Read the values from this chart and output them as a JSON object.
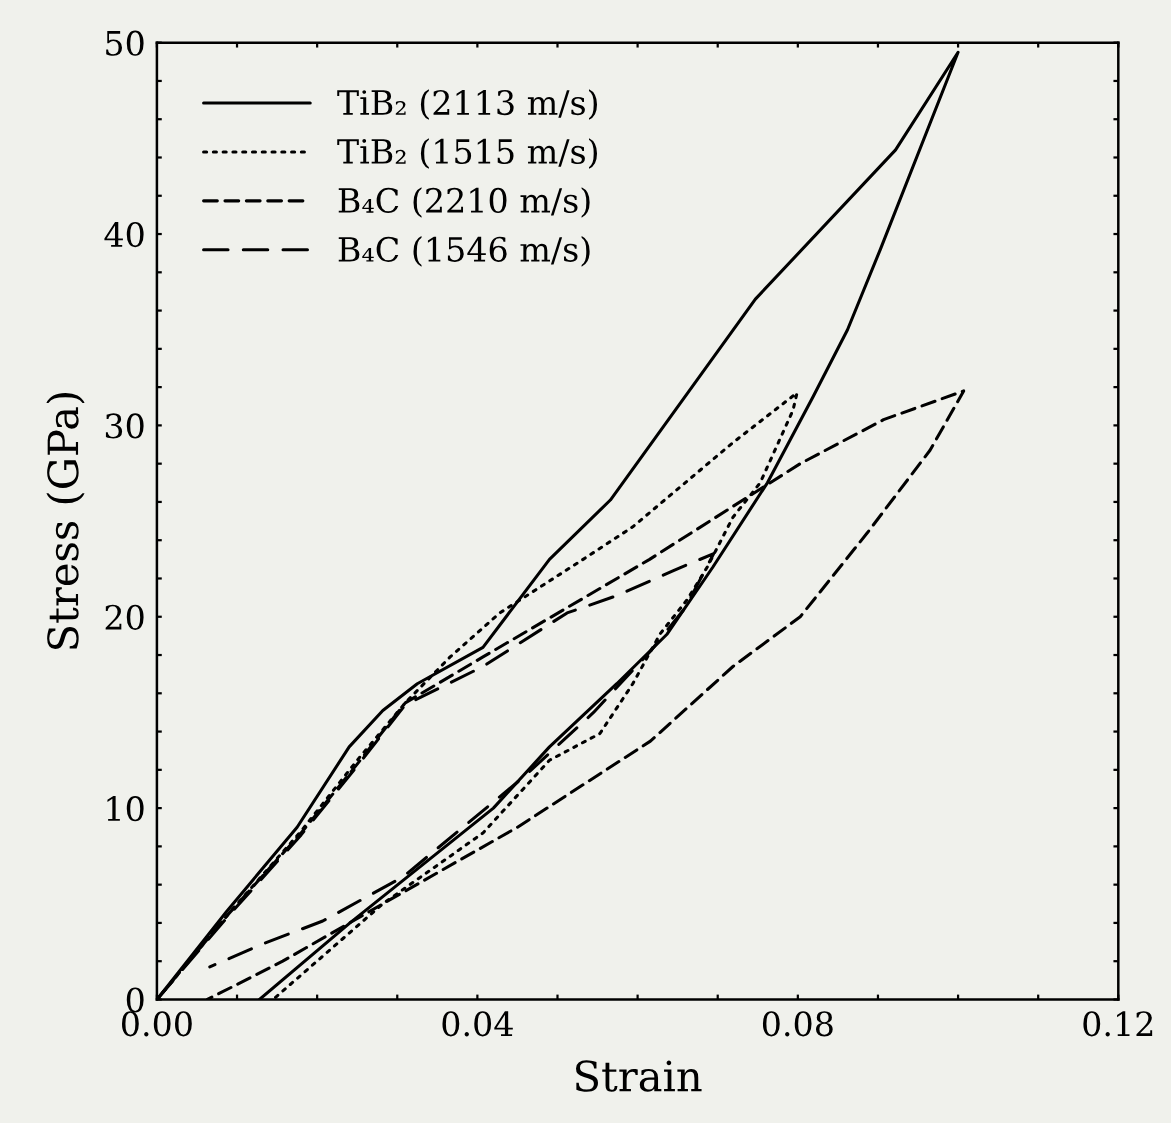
{
  "chart_data": {
    "type": "line",
    "xlabel": "Strain",
    "ylabel": "Stress (GPa)",
    "xlim": [
      0,
      0.12
    ],
    "ylim": [
      0,
      50
    ],
    "xticks": [
      {
        "value": 0,
        "label": "0.00"
      },
      {
        "value": 0.01,
        "label": null
      },
      {
        "value": 0.02,
        "label": null
      },
      {
        "value": 0.03,
        "label": null
      },
      {
        "value": 0.04,
        "label": "0.04"
      },
      {
        "value": 0.05,
        "label": null
      },
      {
        "value": 0.06,
        "label": null
      },
      {
        "value": 0.07,
        "label": null
      },
      {
        "value": 0.08,
        "label": "0.08"
      },
      {
        "value": 0.09,
        "label": null
      },
      {
        "value": 0.1,
        "label": null
      },
      {
        "value": 0.11,
        "label": null
      },
      {
        "value": 0.12,
        "label": "0.12"
      }
    ],
    "yticks": [
      0,
      {
        "value": 2,
        "label": null
      },
      {
        "value": 4,
        "label": null
      },
      {
        "value": 6,
        "label": null
      },
      {
        "value": 8,
        "label": null
      },
      10,
      {
        "value": 12,
        "label": null
      },
      {
        "value": 14,
        "label": null
      },
      {
        "value": 16,
        "label": null
      },
      {
        "value": 18,
        "label": null
      },
      20,
      {
        "value": 22,
        "label": null
      },
      {
        "value": 24,
        "label": null
      },
      {
        "value": 26,
        "label": null
      },
      {
        "value": 28,
        "label": null
      },
      30,
      {
        "value": 32,
        "label": null
      },
      {
        "value": 34,
        "label": null
      },
      {
        "value": 36,
        "label": null
      },
      {
        "value": 38,
        "label": null
      },
      40,
      {
        "value": 42,
        "label": null
      },
      {
        "value": 44,
        "label": null
      },
      {
        "value": 46,
        "label": null
      },
      {
        "value": 48,
        "label": null
      },
      50
    ],
    "grid": false,
    "legend": "top left",
    "marker": "none",
    "series": [
      {
        "name": "TiB₂ (2113 m/s)",
        "color": "#000000",
        "line_style": "solid",
        "x": [
          0,
          0.0087,
          0.0175,
          0.024,
          0.0282,
          0.0325,
          0.0407,
          0.049,
          0.0566,
          0.0747,
          0.0922,
          0.1,
          0.0903,
          0.0862,
          0.0819,
          0.0762,
          0.0694,
          0.0637,
          0.0574,
          0.049,
          0.042,
          0.0241,
          0.0128
        ],
        "values": [
          0,
          4.6,
          9.0,
          13.2,
          15.1,
          16.5,
          18.4,
          23.0,
          26.1,
          36.6,
          44.4,
          49.5,
          39.2,
          35.0,
          31.5,
          27.0,
          22.6,
          19.1,
          16.5,
          13.2,
          10.0,
          4.0,
          0
        ]
      },
      {
        "name": "TiB₂ (1515 m/s)",
        "color": "#000000",
        "line_style": "dotted",
        "x": [
          0,
          0.009,
          0.018,
          0.025,
          0.031,
          0.0366,
          0.0428,
          0.0532,
          0.0594,
          0.0719,
          0.0799,
          0.0794,
          0.0753,
          0.0719,
          0.0687,
          0.0662,
          0.0628,
          0.0594,
          0.0553,
          0.049,
          0.0407,
          0.0282,
          0.0145
        ],
        "values": [
          0,
          4.5,
          8.8,
          12.5,
          15.5,
          17.9,
          20.2,
          23.0,
          24.7,
          29.1,
          31.7,
          30.8,
          27.0,
          25.2,
          22.6,
          20.9,
          19.1,
          16.5,
          13.9,
          12.5,
          8.7,
          5.0,
          0
        ]
      },
      {
        "name": "B₄C (2210 m/s)",
        "color": "#000000",
        "line_style": "dashed",
        "x": [
          0,
          0.009,
          0.018,
          0.025,
          0.031,
          0.0407,
          0.0615,
          0.0803,
          0.0907,
          0.1007,
          0.0965,
          0.0887,
          0.0803,
          0.0719,
          0.0616,
          0.045,
          0.0282,
          0.0157,
          0.0063
        ],
        "values": [
          0,
          4.5,
          8.7,
          12.3,
          15.5,
          17.9,
          23.0,
          28.0,
          30.3,
          31.8,
          28.7,
          24.4,
          20.0,
          17.4,
          13.5,
          9.0,
          5.0,
          2.0,
          0
        ]
      },
      {
        "name": "B₄C (1546 m/s)",
        "color": "#000000",
        "line_style": "longdash",
        "x": [
          0,
          0.009,
          0.018,
          0.025,
          0.031,
          0.0407,
          0.0512,
          0.0574,
          0.0644,
          0.0695,
          0.066,
          0.0616,
          0.0545,
          0.0457,
          0.0307,
          0.0207,
          0.0132,
          0.0066
        ],
        "values": [
          0,
          4.4,
          8.6,
          12.2,
          15.4,
          17.4,
          20.2,
          21.1,
          22.4,
          23.3,
          20.5,
          18.2,
          15.0,
          11.6,
          6.4,
          4.1,
          2.9,
          1.7
        ]
      }
    ]
  }
}
